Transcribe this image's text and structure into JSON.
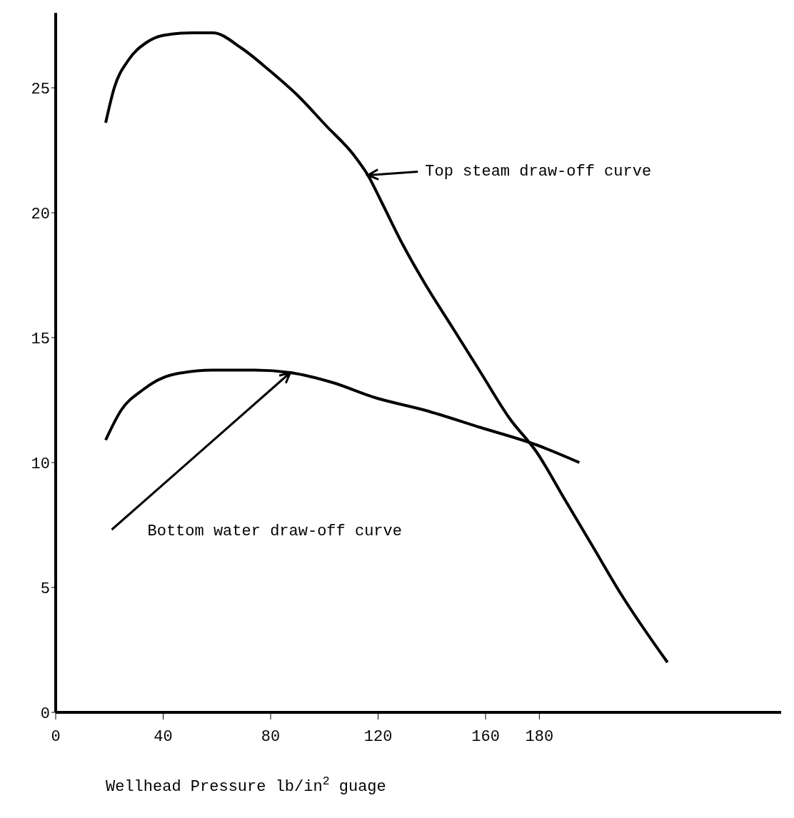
{
  "chart_data": {
    "type": "line",
    "xlabel": "Wellhead Pressure lb/in$^{2}$ guage",
    "series": [
      {
        "color": "#000000",
        "x": [
          18.6,
          21.8,
          27.0,
          33.6,
          40.1,
          50.6,
          58.5,
          69.0,
          79.5,
          90.0,
          100.5,
          111.0,
          116.2,
          121.4,
          129.3,
          137.2,
          147.7,
          158.2,
          168.7,
          179.1,
          189.6,
          200.1,
          210.6,
          227.7
        ],
        "values": [
          23.6,
          25.0,
          26.1,
          26.8,
          27.1,
          27.2,
          27.2,
          26.6,
          25.7,
          24.7,
          23.5,
          22.3,
          21.5,
          20.4,
          18.7,
          17.2,
          15.4,
          13.6,
          11.8,
          10.4,
          8.5,
          6.6,
          4.7,
          2.0
        ]
      },
      {
        "color": "#000000",
        "x": [
          18.6,
          24.4,
          32.3,
          42.8,
          58.5,
          74.2,
          87.3,
          103.1,
          118.8,
          137.2,
          158.2,
          179.1,
          194.9
        ],
        "values": [
          10.9,
          12.1,
          12.9,
          13.5,
          13.7,
          13.7,
          13.6,
          13.2,
          12.6,
          12.1,
          11.4,
          10.7,
          10.0
        ]
      }
    ],
    "annotations": [
      "Top steam draw-off curve",
      "Bottom water draw-off curve"
    ],
    "xlim": [
      0,
      270
    ],
    "ylim": [
      0,
      28
    ],
    "xticks": [
      0,
      40,
      80,
      120,
      160,
      180
    ],
    "yticks": [
      0,
      5,
      10,
      15,
      20,
      25
    ],
    "grid": false,
    "legend": false,
    "marker": "none",
    "line_style": "solid"
  }
}
